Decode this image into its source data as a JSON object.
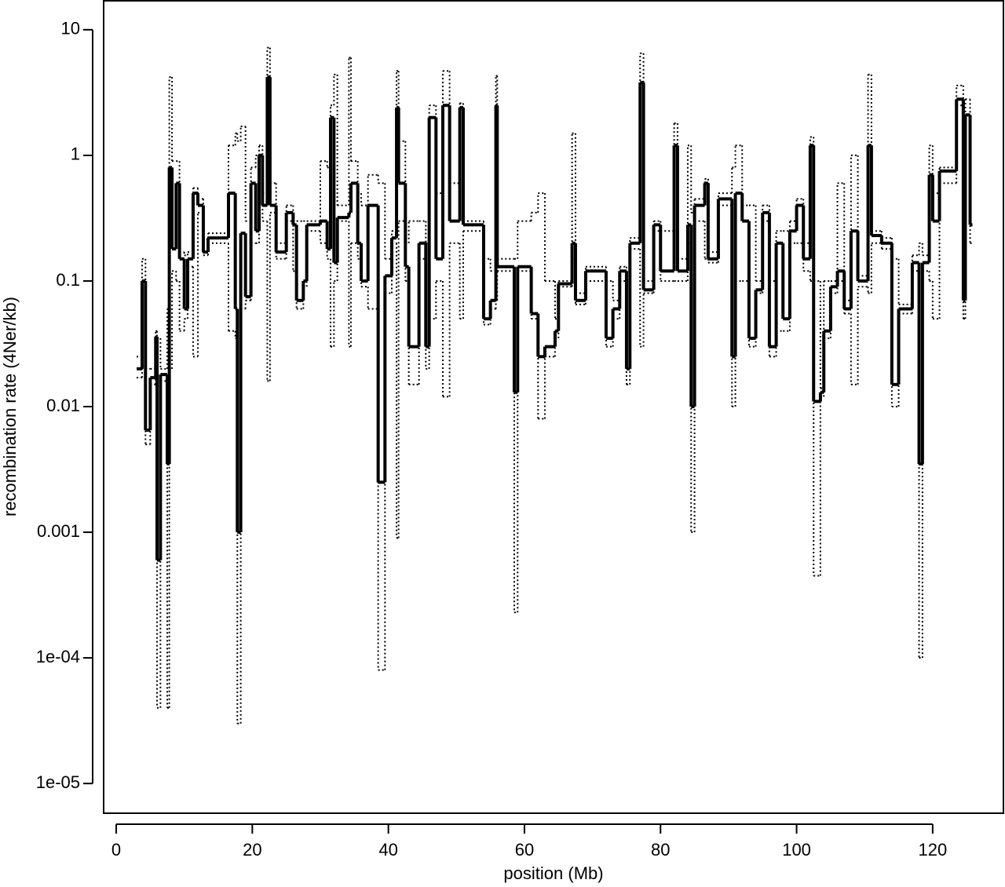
{
  "chart_data": {
    "type": "step-line",
    "x_label": "position (Mb)",
    "y_label": "recombination rate (4Ner/kb)",
    "log_y": true,
    "xlim": [
      -1.85,
      130.4
    ],
    "ylim": [
      5.8e-06,
      17
    ],
    "xticks": [
      0,
      20,
      40,
      60,
      80,
      100,
      120
    ],
    "yticks": [
      10,
      1,
      0.1,
      0.01,
      0.001,
      {
        "value": 0.0001,
        "label": "1e-04"
      },
      {
        "value": 1e-05,
        "label": "1e-05"
      }
    ],
    "x": [
      3,
      3.8,
      4.3,
      5,
      5.8,
      6,
      6.5,
      7.5,
      7.8,
      8.2,
      8.8,
      9.3,
      10,
      10.5,
      11.3,
      12,
      12.8,
      13.5,
      16.5,
      17.5,
      17.8,
      18.3,
      19,
      19.8,
      20.5,
      21,
      21.5,
      22.2,
      22.6,
      23.5,
      25,
      26,
      26.5,
      27.5,
      28,
      30,
      31,
      31.5,
      32,
      32.5,
      34.2,
      34.5,
      35.5,
      36,
      37,
      38.5,
      39.5,
      40.5,
      41.2,
      41.5,
      42.5,
      43,
      44.5,
      45.5,
      46,
      47,
      48,
      49,
      50.5,
      51,
      54,
      55,
      55.8,
      56,
      58.5,
      59,
      61,
      62,
      63,
      64.5,
      65,
      67,
      67.5,
      69,
      72,
      73,
      74,
      75,
      75.5,
      77,
      77.5,
      79,
      80,
      82,
      82.5,
      84,
      84.5,
      85,
      86.5,
      87,
      88.5,
      90.5,
      91,
      92,
      93,
      94,
      95,
      96,
      97,
      98,
      99,
      100,
      101,
      102,
      102.5,
      103.5,
      104,
      105,
      106,
      107,
      108,
      109,
      110.5,
      111,
      112.5,
      114,
      115,
      117,
      118,
      118.5,
      119.5,
      120,
      121,
      123.5,
      124.5,
      124.8,
      125.5
    ],
    "series": [
      {
        "color": "#000000",
        "style": "dotted",
        "values": [
          0.017,
          0.08,
          0.005,
          0.015,
          0.03,
          4e-05,
          0.016,
          4e-05,
          0.02,
          0.12,
          0.1,
          0.04,
          0.05,
          0.13,
          0.025,
          0.35,
          0.16,
          0.2,
          0.04,
          0.035,
          3e-05,
          0.06,
          0.07,
          0.2,
          0.2,
          0.5,
          0.3,
          0.016,
          0.35,
          0.15,
          0.3,
          0.12,
          0.06,
          0.09,
          0.25,
          0.2,
          0.15,
          0.03,
          0.1,
          0.3,
          0.03,
          0.2,
          0.15,
          0.09,
          0.06,
          8e-05,
          0.08,
          0.2,
          0.0009,
          0.3,
          0.1,
          0.015,
          0.15,
          0.02,
          0.05,
          0.1,
          0.012,
          0.2,
          0.05,
          0.25,
          0.045,
          0.06,
          0.07,
          0.12,
          0.00023,
          0.12,
          0.05,
          0.008,
          0.025,
          0.035,
          0.09,
          0.15,
          0.065,
          0.1,
          0.03,
          0.05,
          0.1,
          0.015,
          0.18,
          0.03,
          0.08,
          0.25,
          0.1,
          0.1,
          0.1,
          0.2,
          0.001,
          0.3,
          0.15,
          0.14,
          0.4,
          0.01,
          0.1,
          0.1,
          0.03,
          0.08,
          0.3,
          0.025,
          0.04,
          0.04,
          0.2,
          0.2,
          0.12,
          0.1,
          0.00045,
          0.012,
          0.035,
          0.08,
          0.1,
          0.055,
          0.015,
          0.09,
          0.08,
          0.2,
          0.18,
          0.01,
          0.055,
          0.12,
          0.0001,
          0.12,
          0.1,
          0.05,
          0.6,
          2.5,
          0.05,
          1.8,
          0.2
        ]
      },
      {
        "color": "#000000",
        "style": "dotted",
        "values": [
          0.025,
          0.15,
          0.02,
          0.02,
          0.04,
          0.035,
          0.02,
          0.06,
          4.2,
          0.9,
          0.9,
          0.17,
          0.16,
          0.17,
          0.55,
          0.45,
          0.19,
          0.24,
          1.2,
          1.5,
          1.3,
          1.7,
          0.3,
          0.8,
          1,
          1.2,
          0.5,
          7.2,
          0.6,
          0.2,
          0.4,
          0.3,
          0.3,
          0.3,
          0.3,
          0.9,
          0.8,
          2.5,
          4.4,
          0.4,
          6,
          0.9,
          0.5,
          0.4,
          0.7,
          0.6,
          0.15,
          0.25,
          4.7,
          1.3,
          0.2,
          0.3,
          0.3,
          0.2,
          2.5,
          0.5,
          4.7,
          0.6,
          2.6,
          0.3,
          0.15,
          0.12,
          4.3,
          0.15,
          0.15,
          0.3,
          0.35,
          0.5,
          0.1,
          0.05,
          0.1,
          1.5,
          0.08,
          0.13,
          0.1,
          0.07,
          0.13,
          0.1,
          0.22,
          6.5,
          0.1,
          0.3,
          0.25,
          1.8,
          0.15,
          1.2,
          0.35,
          0.45,
          0.65,
          0.17,
          0.5,
          0.8,
          1.2,
          0.4,
          0.4,
          0.1,
          0.4,
          0.1,
          0.25,
          0.25,
          0.3,
          0.45,
          0.2,
          1.4,
          0.1,
          0.014,
          0.1,
          0.1,
          0.6,
          0.07,
          1,
          0.11,
          4.4,
          0.25,
          0.22,
          0.15,
          0.065,
          0.16,
          0.2,
          0.16,
          1.2,
          0.5,
          0.8,
          3.6,
          0.1,
          2.8,
          0.3
        ]
      },
      {
        "color": "#000000",
        "style": "solid",
        "values": [
          0.02,
          0.1,
          0.0065,
          0.017,
          0.036,
          0.0006,
          0.018,
          0.0035,
          0.8,
          0.18,
          0.6,
          0.15,
          0.06,
          0.15,
          0.5,
          0.4,
          0.17,
          0.22,
          0.5,
          0.06,
          0.001,
          0.24,
          0.075,
          0.6,
          0.25,
          1,
          0.4,
          4.2,
          0.4,
          0.17,
          0.35,
          0.28,
          0.07,
          0.1,
          0.28,
          0.3,
          0.18,
          2,
          0.14,
          0.32,
          0.35,
          0.6,
          0.2,
          0.1,
          0.4,
          0.0025,
          0.11,
          0.22,
          2.4,
          0.6,
          0.13,
          0.03,
          0.2,
          0.03,
          2,
          0.15,
          2.5,
          0.3,
          2.4,
          0.28,
          0.05,
          0.07,
          2.5,
          0.13,
          0.013,
          0.13,
          0.055,
          0.025,
          0.03,
          0.04,
          0.095,
          0.2,
          0.07,
          0.12,
          0.035,
          0.06,
          0.12,
          0.02,
          0.2,
          3.8,
          0.085,
          0.28,
          0.12,
          1.2,
          0.12,
          0.28,
          0.01,
          0.4,
          0.6,
          0.15,
          0.45,
          0.025,
          0.5,
          0.3,
          0.035,
          0.085,
          0.35,
          0.03,
          0.2,
          0.05,
          0.25,
          0.4,
          0.15,
          1.2,
          0.011,
          0.013,
          0.04,
          0.09,
          0.12,
          0.06,
          0.25,
          0.1,
          1.2,
          0.23,
          0.2,
          0.015,
          0.06,
          0.14,
          0.0035,
          0.14,
          0.7,
          0.3,
          0.75,
          2.8,
          0.07,
          2.1,
          0.28
        ]
      }
    ]
  }
}
